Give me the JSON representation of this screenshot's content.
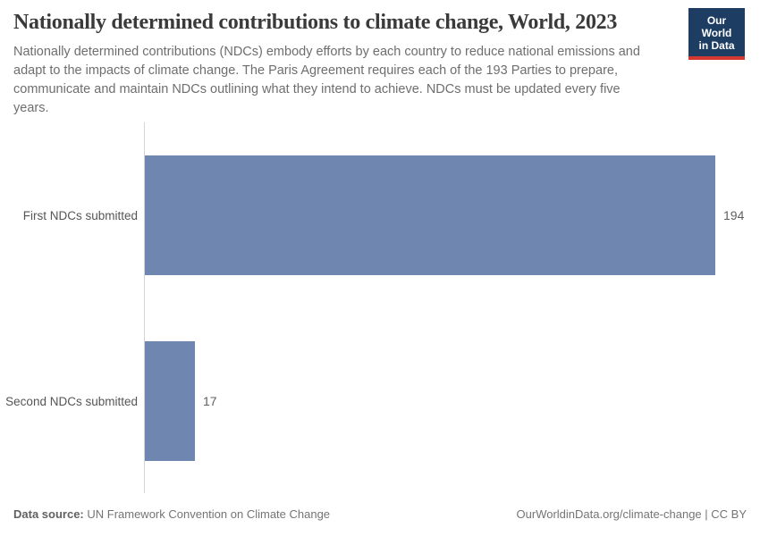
{
  "header": {
    "title": "Nationally determined contributions to climate change, World, 2023",
    "subtitle_lines": [
      "Nationally determined contributions (NDCs) embody efforts by each country to reduce national emissions and",
      "adapt to the impacts of climate change. The Paris Agreement requires each of the 193 Parties to prepare,",
      "communicate and maintain NDCs outlining what they intend to achieve. NDCs must be updated every five",
      "years."
    ],
    "logo": {
      "line1": "Our World",
      "line2": "in Data"
    }
  },
  "chart_data": {
    "type": "bar",
    "orientation": "horizontal",
    "title": "Nationally determined contributions to climate change, World, 2023",
    "categories": [
      "First NDCs submitted",
      "Second NDCs submitted"
    ],
    "values": [
      194,
      17
    ],
    "xlim": [
      0,
      194
    ],
    "grid": false,
    "legend": "none",
    "bar_color": "#6e86b0"
  },
  "footer": {
    "data_source_label": "Data source:",
    "data_source_value": " UN Framework Convention on Climate Change",
    "attribution": "OurWorldinData.org/climate-change | CC BY"
  },
  "colors": {
    "bar": "#6e86b0",
    "logo_background": "#1d3d63",
    "logo_accent_bar": "#d43830",
    "title_text": "#3a3a3a",
    "body_text": "#6e6e6e",
    "axis_line": "#d5d5d5"
  }
}
